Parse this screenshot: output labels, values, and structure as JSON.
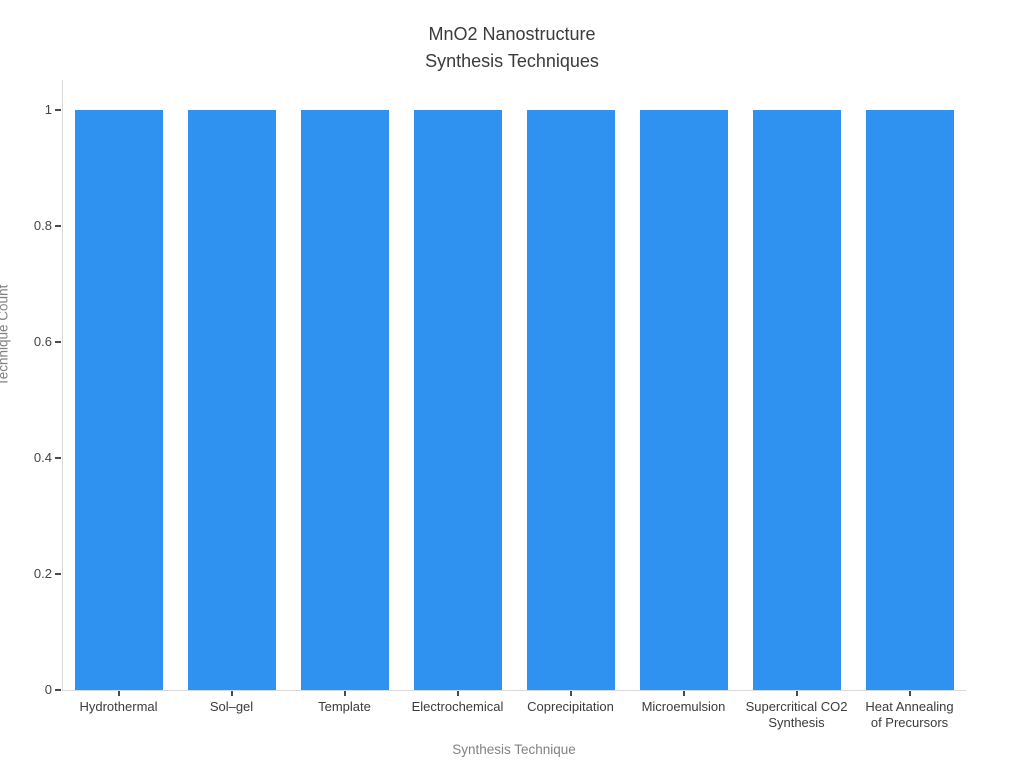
{
  "chart_data": {
    "type": "bar",
    "title": "MnO2 Nanostructure\nSynthesis Techniques",
    "xlabel": "Synthesis Technique",
    "ylabel": "Technique Count",
    "categories": [
      "Hydrothermal",
      "Sol–gel",
      "Template",
      "Electrochemical",
      "Coprecipitation",
      "Microemulsion",
      "Supercritical CO2\nSynthesis",
      "Heat Annealing\nof Precursors"
    ],
    "values": [
      1,
      1,
      1,
      1,
      1,
      1,
      1,
      1
    ],
    "yticks": [
      {
        "value": 0,
        "label": "0"
      },
      {
        "value": 0.2,
        "label": "0.2"
      },
      {
        "value": 0.4,
        "label": "0.4"
      },
      {
        "value": 0.6,
        "label": "0.6"
      },
      {
        "value": 0.8,
        "label": "0.8"
      },
      {
        "value": 1,
        "label": "1"
      }
    ],
    "ylim": [
      0,
      1.05
    ],
    "grid": false,
    "legend": "none",
    "colors": {
      "bar": "#2f92f0",
      "axis_line": "#d9d9d9",
      "tick_mark": "#4a4a4a",
      "tick_label": "#444444",
      "category_label": "#3b3b3b",
      "axis_title": "#828282",
      "title": "#3b3b3b",
      "background": "#ffffff"
    }
  }
}
